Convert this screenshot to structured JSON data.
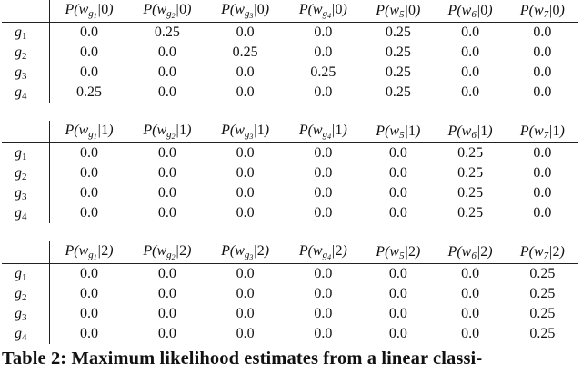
{
  "tables": [
    {
      "class": "0",
      "columns": [
        {
          "var": "w",
          "sub": "g",
          "subsub": "1"
        },
        {
          "var": "w",
          "sub": "g",
          "subsub": "2"
        },
        {
          "var": "w",
          "sub": "g",
          "subsub": "3"
        },
        {
          "var": "w",
          "sub": "g",
          "subsub": "4"
        },
        {
          "var": "w",
          "sub": "5",
          "subsub": ""
        },
        {
          "var": "w",
          "sub": "6",
          "subsub": ""
        },
        {
          "var": "w",
          "sub": "7",
          "subsub": ""
        }
      ],
      "rows": [
        {
          "label": "g",
          "sub": "1",
          "values": [
            "0.0",
            "0.25",
            "0.0",
            "0.0",
            "0.25",
            "0.0",
            "0.0"
          ]
        },
        {
          "label": "g",
          "sub": "2",
          "values": [
            "0.0",
            "0.0",
            "0.25",
            "0.0",
            "0.25",
            "0.0",
            "0.0"
          ]
        },
        {
          "label": "g",
          "sub": "3",
          "values": [
            "0.0",
            "0.0",
            "0.0",
            "0.25",
            "0.25",
            "0.0",
            "0.0"
          ]
        },
        {
          "label": "g",
          "sub": "4",
          "values": [
            "0.25",
            "0.0",
            "0.0",
            "0.0",
            "0.25",
            "0.0",
            "0.0"
          ]
        }
      ]
    },
    {
      "class": "1",
      "columns": [
        {
          "var": "w",
          "sub": "g",
          "subsub": "1"
        },
        {
          "var": "w",
          "sub": "g",
          "subsub": "2"
        },
        {
          "var": "w",
          "sub": "g",
          "subsub": "3"
        },
        {
          "var": "w",
          "sub": "g",
          "subsub": "4"
        },
        {
          "var": "w",
          "sub": "5",
          "subsub": ""
        },
        {
          "var": "w",
          "sub": "6",
          "subsub": ""
        },
        {
          "var": "w",
          "sub": "7",
          "subsub": ""
        }
      ],
      "rows": [
        {
          "label": "g",
          "sub": "1",
          "values": [
            "0.0",
            "0.0",
            "0.0",
            "0.0",
            "0.0",
            "0.25",
            "0.0"
          ]
        },
        {
          "label": "g",
          "sub": "2",
          "values": [
            "0.0",
            "0.0",
            "0.0",
            "0.0",
            "0.0",
            "0.25",
            "0.0"
          ]
        },
        {
          "label": "g",
          "sub": "3",
          "values": [
            "0.0",
            "0.0",
            "0.0",
            "0.0",
            "0.0",
            "0.25",
            "0.0"
          ]
        },
        {
          "label": "g",
          "sub": "4",
          "values": [
            "0.0",
            "0.0",
            "0.0",
            "0.0",
            "0.0",
            "0.25",
            "0.0"
          ]
        }
      ]
    },
    {
      "class": "2",
      "columns": [
        {
          "var": "w",
          "sub": "g",
          "subsub": "1"
        },
        {
          "var": "w",
          "sub": "g",
          "subsub": "2"
        },
        {
          "var": "w",
          "sub": "g",
          "subsub": "3"
        },
        {
          "var": "w",
          "sub": "g",
          "subsub": "4"
        },
        {
          "var": "w",
          "sub": "5",
          "subsub": ""
        },
        {
          "var": "w",
          "sub": "6",
          "subsub": ""
        },
        {
          "var": "w",
          "sub": "7",
          "subsub": ""
        }
      ],
      "rows": [
        {
          "label": "g",
          "sub": "1",
          "values": [
            "0.0",
            "0.0",
            "0.0",
            "0.0",
            "0.0",
            "0.0",
            "0.25"
          ]
        },
        {
          "label": "g",
          "sub": "2",
          "values": [
            "0.0",
            "0.0",
            "0.0",
            "0.0",
            "0.0",
            "0.0",
            "0.25"
          ]
        },
        {
          "label": "g",
          "sub": "3",
          "values": [
            "0.0",
            "0.0",
            "0.0",
            "0.0",
            "0.0",
            "0.0",
            "0.25"
          ]
        },
        {
          "label": "g",
          "sub": "4",
          "values": [
            "0.0",
            "0.0",
            "0.0",
            "0.0",
            "0.0",
            "0.0",
            "0.25"
          ]
        }
      ]
    }
  ],
  "prob_symbol": "P",
  "caption": "Table 2: Maximum likelihood estimates from a linear classi-"
}
